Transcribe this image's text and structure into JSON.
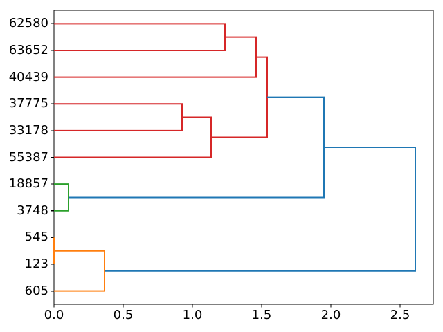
{
  "figure": {
    "background": "#ffffff",
    "axis_color": "#000000",
    "text_color": "#000000"
  },
  "chart_data": {
    "type": "dendrogram",
    "orientation": "right",
    "title": "",
    "xlabel": "",
    "ylabel": "",
    "grid": false,
    "legend": false,
    "leaf_labels": [
      "62580",
      "63652",
      "40439",
      "37775",
      "33178",
      "55387",
      "18857",
      "3748",
      "545",
      "123",
      "605"
    ],
    "merges": [
      {
        "children": [
          8,
          9
        ],
        "distance": 0.0,
        "color": "#ff7f0e"
      },
      {
        "children": [
          6,
          7
        ],
        "distance": 0.105,
        "color": "#2ca02c"
      },
      {
        "children": [
          11,
          10
        ],
        "distance": 0.365,
        "color": "#ff7f0e"
      },
      {
        "children": [
          3,
          4
        ],
        "distance": 0.925,
        "color": "#d62728"
      },
      {
        "children": [
          14,
          5
        ],
        "distance": 1.135,
        "color": "#d62728"
      },
      {
        "children": [
          0,
          1
        ],
        "distance": 1.235,
        "color": "#d62728"
      },
      {
        "children": [
          16,
          2
        ],
        "distance": 1.46,
        "color": "#d62728"
      },
      {
        "children": [
          17,
          15
        ],
        "distance": 1.54,
        "color": "#d62728"
      },
      {
        "children": [
          18,
          12
        ],
        "distance": 1.95,
        "color": "#1f77b4"
      },
      {
        "children": [
          19,
          13
        ],
        "distance": 2.61,
        "color": "#1f77b4"
      }
    ],
    "x_axis": {
      "tick_labels": [
        "0.0",
        "0.5",
        "1.0",
        "1.5",
        "2.0",
        "2.5"
      ],
      "tick_values": [
        0,
        0.5,
        1.0,
        1.5,
        2.0,
        2.5
      ],
      "range": [
        0,
        2.74
      ]
    },
    "palette": {
      "above_threshold": "#1f77b4",
      "cluster_red": "#d62728",
      "cluster_green": "#2ca02c",
      "cluster_orange": "#ff7f0e"
    }
  }
}
